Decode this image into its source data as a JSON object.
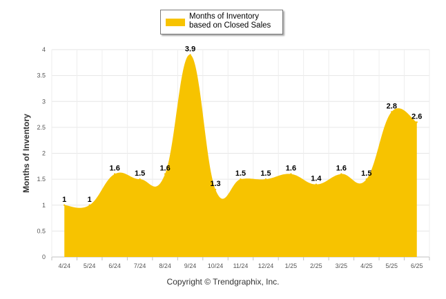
{
  "chart_data": {
    "type": "area",
    "categories": [
      "4/24",
      "5/24",
      "6/24",
      "7/24",
      "8/24",
      "9/24",
      "10/24",
      "11/24",
      "12/24",
      "1/25",
      "2/25",
      "3/25",
      "4/25",
      "5/25",
      "6/25"
    ],
    "series": [
      {
        "name": "Months of Inventory based on Closed Sales",
        "values": [
          1,
          1,
          1.6,
          1.5,
          1.6,
          3.9,
          1.3,
          1.5,
          1.5,
          1.6,
          1.4,
          1.6,
          1.5,
          2.8,
          2.6
        ],
        "color": "#f7c300"
      }
    ],
    "data_labels": [
      "1",
      "1",
      "1.6",
      "1.5",
      "1.6",
      "3.9",
      "1.3",
      "1.5",
      "1.5",
      "1.6",
      "1.4",
      "1.6",
      "1.5",
      "2.8",
      "2.6"
    ],
    "ylabel": "Months of Inventory",
    "xlabel": "",
    "ylim": [
      0,
      4
    ],
    "yticks": [
      0,
      0.5,
      1,
      1.5,
      2,
      2.5,
      3,
      3.5,
      4
    ],
    "ytick_labels": [
      "0",
      "0.5",
      "1",
      "1.5",
      "2",
      "2.5",
      "3",
      "3.5",
      "4"
    ],
    "grid": true,
    "legend_position": "top-center"
  },
  "legend": {
    "label": "Months of Inventory based on Closed Sales"
  },
  "footer": {
    "copyright": "Copyright © Trendgraphix, Inc."
  }
}
